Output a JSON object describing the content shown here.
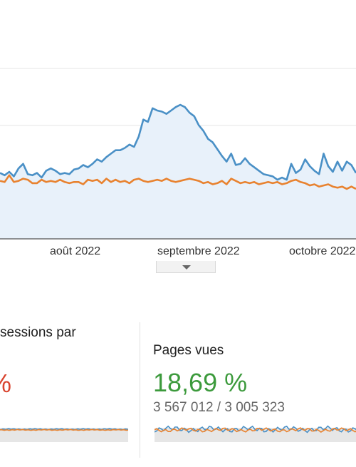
{
  "chart_data": {
    "type": "line",
    "x_tick_labels": [
      "août 2022",
      "septembre 2022",
      "octobre 2022"
    ],
    "series": [
      {
        "color": "#4a90c6",
        "fill": "#e8f1fa",
        "values": [
          58,
          56,
          59,
          55,
          62,
          66,
          57,
          56,
          58,
          54,
          60,
          62,
          60,
          57,
          58,
          57,
          61,
          62,
          65,
          63,
          66,
          70,
          68,
          72,
          75,
          78,
          78,
          80,
          83,
          81,
          90,
          105,
          103,
          115,
          113,
          112,
          110,
          113,
          116,
          118,
          116,
          111,
          108,
          100,
          95,
          88,
          85,
          79,
          73,
          68,
          75,
          65,
          66,
          71,
          66,
          63,
          60,
          57,
          56,
          55,
          52,
          54,
          52,
          66,
          58,
          61,
          70,
          64,
          60,
          57,
          75,
          64,
          59,
          68,
          60,
          68,
          65,
          58
        ]
      },
      {
        "color": "#e8822f",
        "values": [
          51,
          50,
          56,
          50,
          51,
          53,
          52,
          49,
          49,
          52,
          50,
          51,
          50,
          52,
          50,
          49,
          50,
          50,
          48,
          52,
          51,
          52,
          49,
          53,
          50,
          52,
          50,
          51,
          49,
          52,
          53,
          51,
          50,
          51,
          52,
          51,
          53,
          51,
          50,
          51,
          52,
          53,
          52,
          51,
          49,
          50,
          48,
          49,
          51,
          48,
          53,
          51,
          49,
          50,
          49,
          50,
          48,
          49,
          50,
          49,
          50,
          48,
          49,
          51,
          52,
          50,
          49,
          47,
          48,
          46,
          47,
          48,
          46,
          45,
          46,
          44,
          46,
          44
        ]
      }
    ]
  },
  "cards": {
    "left": {
      "title": "sessions par",
      "value": "%"
    },
    "right": {
      "title": "Pages vues",
      "value": "18,69 %",
      "sub": "3 567 012 / 3 005 323"
    }
  },
  "colors": {
    "positive": "#3c9a3c",
    "negative": "#d9442f"
  }
}
